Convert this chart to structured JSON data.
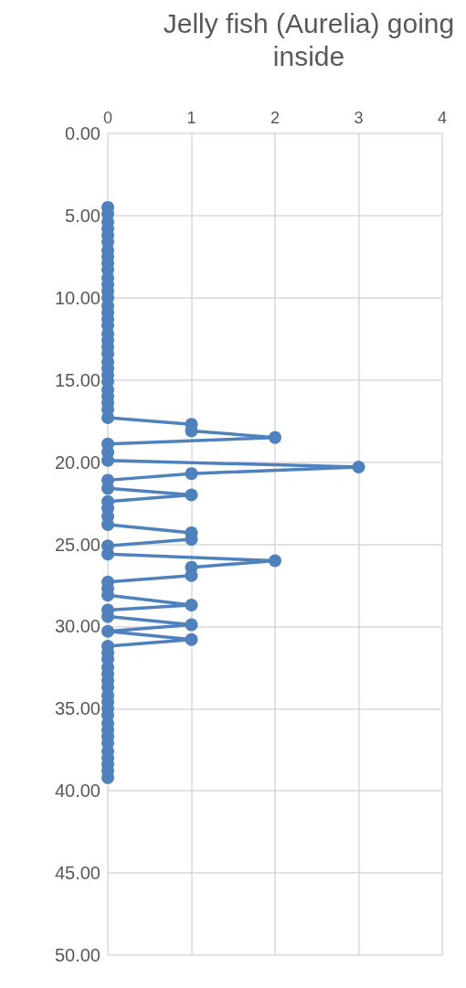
{
  "chart_data": {
    "type": "line",
    "title": "Jelly fish (Aurelia) going inside",
    "series": [
      {
        "color": "#4f81bd",
        "x": [
          0,
          0,
          0,
          0,
          0,
          0,
          0,
          0,
          0,
          0,
          0,
          0,
          0,
          0,
          0,
          0,
          0,
          0,
          0,
          0,
          0,
          0,
          0,
          0,
          0,
          0,
          0,
          0,
          0,
          0,
          0,
          1,
          1,
          2,
          0,
          0,
          0,
          3,
          1,
          0,
          0,
          1,
          0,
          0,
          0,
          0,
          1,
          1,
          0,
          0,
          2,
          1,
          1,
          0,
          0,
          0,
          1,
          0,
          0,
          1,
          0,
          1,
          0,
          0,
          0,
          0,
          0,
          0,
          0,
          0,
          0,
          0,
          0,
          0,
          0,
          0,
          0,
          0,
          0,
          0,
          0,
          0
        ],
        "values": [
          4.5,
          4.9,
          5.4,
          5.8,
          6.2,
          6.6,
          7.1,
          7.5,
          7.9,
          8.3,
          8.8,
          9.2,
          9.6,
          10.0,
          10.5,
          10.9,
          11.3,
          11.7,
          12.2,
          12.6,
          13.0,
          13.4,
          13.9,
          14.3,
          14.7,
          15.1,
          15.6,
          16.0,
          16.4,
          16.8,
          17.3,
          17.7,
          18.1,
          18.5,
          18.9,
          19.4,
          19.9,
          20.3,
          20.7,
          21.1,
          21.6,
          22.0,
          22.4,
          22.8,
          23.3,
          23.8,
          24.3,
          24.7,
          25.1,
          25.6,
          26.0,
          26.4,
          26.9,
          27.3,
          27.7,
          28.1,
          28.7,
          29.0,
          29.4,
          29.9,
          30.3,
          30.8,
          31.2,
          31.6,
          32.0,
          32.5,
          32.9,
          33.3,
          33.7,
          34.2,
          34.6,
          35.0,
          35.4,
          35.9,
          36.3,
          36.7,
          37.1,
          37.6,
          38.0,
          38.4,
          38.8,
          39.2
        ]
      }
    ],
    "xlim": [
      0,
      4
    ],
    "xticks": [
      0,
      1,
      2,
      3,
      4
    ],
    "ylim": [
      50,
      0
    ],
    "yticks": [
      {
        "value": 0,
        "label": "0.00"
      },
      {
        "value": 5,
        "label": "5.00"
      },
      {
        "value": 10,
        "label": "10.00"
      },
      {
        "value": 15,
        "label": "15.00"
      },
      {
        "value": 20,
        "label": "20.00"
      },
      {
        "value": 25,
        "label": "25.00"
      },
      {
        "value": 30,
        "label": "30.00"
      },
      {
        "value": 35,
        "label": "35.00"
      },
      {
        "value": 40,
        "label": "40.00"
      },
      {
        "value": 45,
        "label": "45.00"
      },
      {
        "value": 50,
        "label": "50.00"
      }
    ],
    "grid": true,
    "marker": "circle",
    "line_style": "solid"
  }
}
